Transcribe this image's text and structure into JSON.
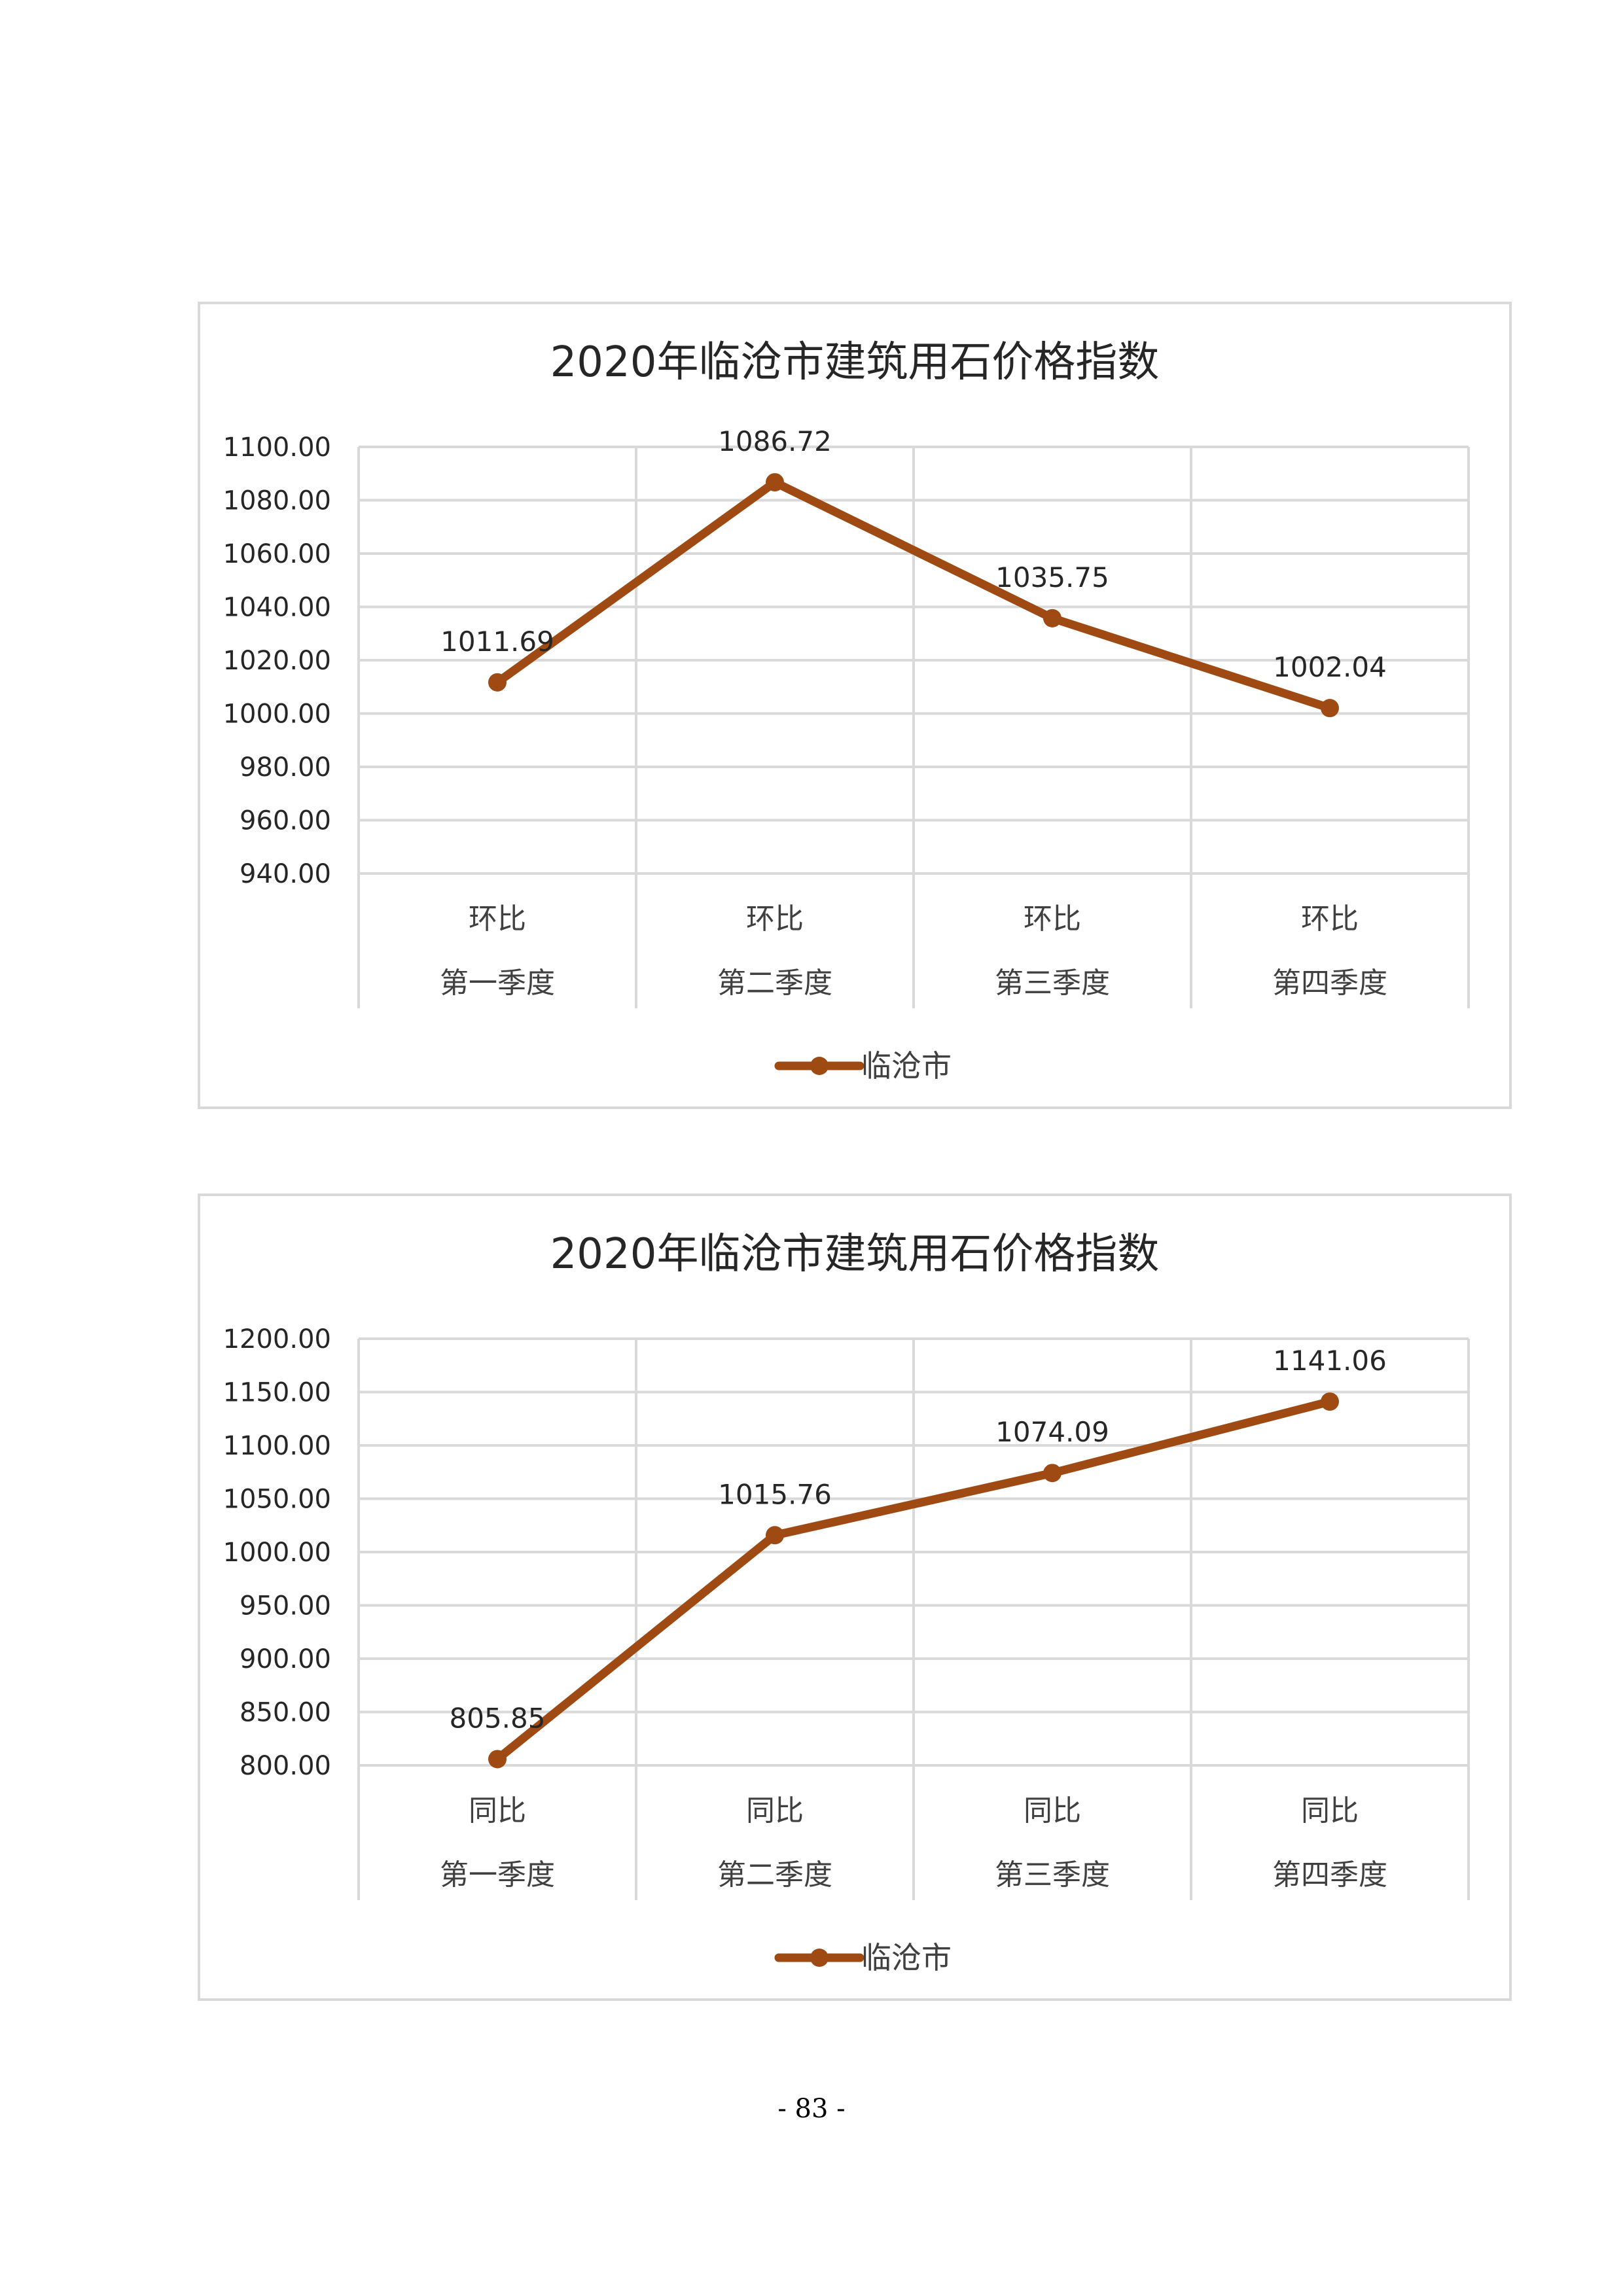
{
  "page": {
    "number": "- 83 -"
  },
  "chart_data": [
    {
      "type": "line",
      "title": "2020年临沧市建筑用石价格指数",
      "xlabel": "",
      "ylabel": "",
      "categories": [
        [
          "环比",
          "第一季度"
        ],
        [
          "环比",
          "第二季度"
        ],
        [
          "环比",
          "第三季度"
        ],
        [
          "环比",
          "第四季度"
        ]
      ],
      "series": [
        {
          "name": "临沧市",
          "values": [
            1011.69,
            1086.72,
            1035.75,
            1002.04
          ],
          "labels": [
            "1011.69",
            "1086.72",
            "1035.75",
            "1002.04"
          ]
        }
      ],
      "ylim": [
        940,
        1100
      ],
      "ytick_step": 20,
      "yticks": [
        "1100.00",
        "1080.00",
        "1060.00",
        "1040.00",
        "1020.00",
        "1000.00",
        "980.00",
        "960.00",
        "940.00"
      ],
      "grid": true,
      "legend": "bottom",
      "color": "#9e4a12"
    },
    {
      "type": "line",
      "title": "2020年临沧市建筑用石价格指数",
      "xlabel": "",
      "ylabel": "",
      "categories": [
        [
          "同比",
          "第一季度"
        ],
        [
          "同比",
          "第二季度"
        ],
        [
          "同比",
          "第三季度"
        ],
        [
          "同比",
          "第四季度"
        ]
      ],
      "series": [
        {
          "name": "临沧市",
          "values": [
            805.85,
            1015.76,
            1074.09,
            1141.06
          ],
          "labels": [
            "805.85",
            "1015.76",
            "1074.09",
            "1141.06"
          ]
        }
      ],
      "ylim": [
        800,
        1200
      ],
      "ytick_step": 50,
      "yticks": [
        "1200.00",
        "1150.00",
        "1100.00",
        "1050.00",
        "1000.00",
        "950.00",
        "900.00",
        "850.00",
        "800.00"
      ],
      "grid": true,
      "legend": "bottom",
      "color": "#9e4a12"
    }
  ]
}
